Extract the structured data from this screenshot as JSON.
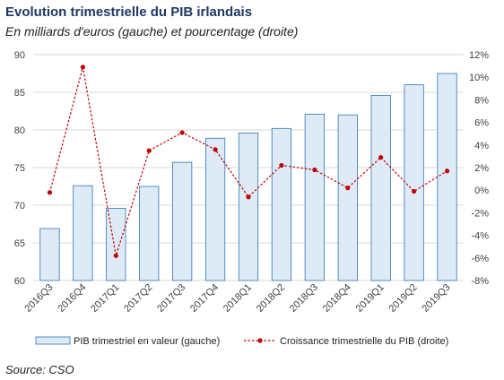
{
  "title": "Evolution trimestrielle du PIB irlandais",
  "subtitle": "En milliards d'euros (gauche) et pourcentage (droite)",
  "source": "Source: CSO",
  "colors": {
    "bar_fill": "#deebf7",
    "bar_stroke": "#2e75b6",
    "line": "#c00000",
    "grid": "#d9d9d9"
  },
  "chart_data": {
    "type": "bar",
    "categories": [
      "2016Q3",
      "2016Q4",
      "2017Q1",
      "2017Q2",
      "2017Q3",
      "2017Q4",
      "2018Q1",
      "2018Q2",
      "2018Q3",
      "2018Q4",
      "2019Q1",
      "2019Q2",
      "2019Q3"
    ],
    "series": [
      {
        "name": "PIB trimestriel en valeur (gauche)",
        "type": "bar",
        "axis": "left",
        "values": [
          66.9,
          72.6,
          69.6,
          72.5,
          75.7,
          78.9,
          79.6,
          80.2,
          82.1,
          82.0,
          84.6,
          86.0,
          87.5
        ]
      },
      {
        "name": "Croissance trimestrielle du PIB (droite)",
        "type": "line",
        "axis": "right",
        "values": [
          -0.2,
          10.9,
          -5.8,
          3.5,
          5.1,
          3.6,
          -0.6,
          2.2,
          1.8,
          0.2,
          2.9,
          -0.1,
          1.7
        ]
      }
    ],
    "y_left": {
      "min": 60,
      "max": 90,
      "step": 5,
      "ticks": [
        "60",
        "65",
        "70",
        "75",
        "80",
        "85",
        "90"
      ]
    },
    "y_right": {
      "min": -8,
      "max": 12,
      "step": 2,
      "ticks": [
        "-8%",
        "-6%",
        "-4%",
        "-2%",
        "0%",
        "2%",
        "4%",
        "6%",
        "8%",
        "10%",
        "12%"
      ]
    },
    "grid": true,
    "legend_position": "bottom"
  }
}
